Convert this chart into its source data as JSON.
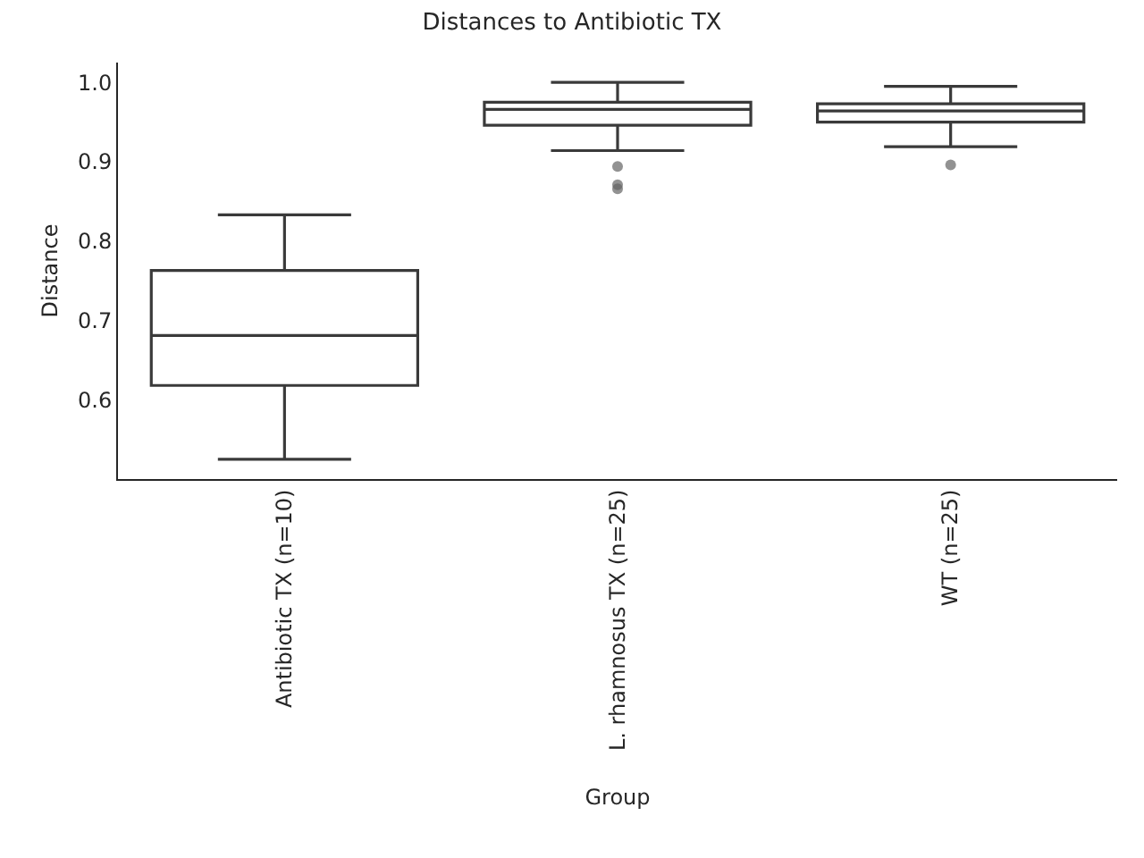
{
  "chart_data": {
    "type": "box",
    "title": "Distances to Antibiotic TX",
    "xlabel": "Group",
    "ylabel": "Distance",
    "categories": [
      "Antibiotic TX (n=10)",
      "L. rhamnosus TX (n=25)",
      "WT (n=25)"
    ],
    "boxes": [
      {
        "low": 0.525,
        "q1": 0.618,
        "median": 0.681,
        "q3": 0.763,
        "high": 0.833
      },
      {
        "low": 0.914,
        "q1": 0.946,
        "median": 0.966,
        "q3": 0.975,
        "high": 1.0,
        "outliers": [
          0.894,
          0.871,
          0.866
        ]
      },
      {
        "low": 0.919,
        "q1": 0.95,
        "median": 0.964,
        "q3": 0.973,
        "high": 0.995,
        "outliers": [
          0.896
        ]
      }
    ],
    "color": "#ffffff",
    "ylim": [
      0.5,
      1.025
    ],
    "yticks": [
      0.6,
      0.7,
      0.8,
      0.9,
      {
        "value": 1,
        "label": "1.0"
      }
    ]
  }
}
